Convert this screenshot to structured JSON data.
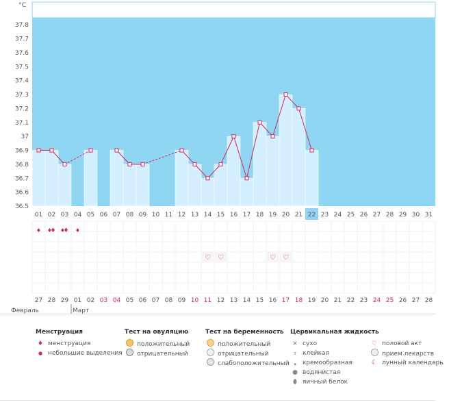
{
  "chart_data": {
    "type": "bar",
    "y_unit": "°C",
    "ylim": [
      36.5,
      37.85
    ],
    "yticks": [
      "37.8",
      "37.7",
      "37.6",
      "37.5",
      "37.4",
      "37.3",
      "37.2",
      "37.1",
      "37",
      "36.9",
      "36.8",
      "36.7",
      "36.6",
      "36.5"
    ],
    "days": [
      "01",
      "02",
      "03",
      "04",
      "05",
      "06",
      "07",
      "08",
      "09",
      "10",
      "11",
      "12",
      "13",
      "14",
      "15",
      "16",
      "17",
      "18",
      "19",
      "20",
      "21",
      "22",
      "23",
      "24",
      "25",
      "26",
      "27",
      "28",
      "29",
      "30",
      "31"
    ],
    "temperatures": [
      36.9,
      36.9,
      36.8,
      null,
      36.9,
      null,
      36.9,
      36.8,
      36.8,
      null,
      null,
      36.9,
      36.8,
      36.7,
      36.8,
      37.0,
      36.7,
      37.1,
      37.0,
      37.3,
      37.2,
      36.9,
      null,
      null,
      null,
      null,
      null,
      null,
      null,
      null,
      null
    ],
    "dashed_gaps": [
      [
        3,
        5
      ],
      [
        9,
        12
      ]
    ],
    "current_day": "22",
    "menstruation_days": {
      "01": "light",
      "02": "heavy",
      "03": "heavy",
      "04": "light"
    },
    "intercourse_days": [
      "14",
      "15",
      "19",
      "20"
    ],
    "cycle_days": [
      "27",
      "28",
      "29",
      "01",
      "02",
      "03",
      "04",
      "05",
      "06",
      "07",
      "08",
      "09",
      "10",
      "11",
      "12",
      "13",
      "14",
      "15",
      "16",
      "17",
      "18",
      "19",
      "20",
      "21",
      "22",
      "23",
      "24",
      "25",
      "26",
      "27",
      "28"
    ],
    "cycle_red_days": [
      "03",
      "04",
      "10",
      "11",
      "17",
      "18",
      "24",
      "25"
    ],
    "current_cycle_day": "19",
    "month_labels": [
      {
        "text": "Февраль",
        "at": 0
      },
      {
        "text": "Март",
        "at": 3
      }
    ]
  },
  "legend": {
    "menstruation": {
      "title": "Менструация",
      "items": [
        "менструация",
        "небольшие выделения"
      ]
    },
    "ovulation": {
      "title": "Тест на овуляцию",
      "items": [
        "положительный",
        "отрицательный"
      ]
    },
    "pregnancy": {
      "title": "Тест на беременность",
      "items": [
        "положительный",
        "отрицательный",
        "слабоположительный"
      ]
    },
    "cervical": {
      "title": "Цервикальная жидкость",
      "items": [
        "сухо",
        "клейкая",
        "кремообразная",
        "водянистая",
        "яичный белок"
      ]
    },
    "other": {
      "items": [
        "половой акт",
        "прием лекарств",
        "лунный календарь"
      ]
    }
  },
  "colors": {
    "plot_bg": "#8fd6f3",
    "bar": "#d4efff",
    "line": "#d6245a",
    "accent_red": "#d6245a",
    "highlight": "#8fd6f3"
  }
}
